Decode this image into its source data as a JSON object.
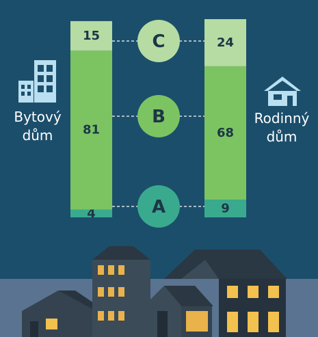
{
  "chart_data": {
    "type": "stacked-bar",
    "categories": [
      "Bytový dům",
      "Rodinný dům"
    ],
    "series": [
      {
        "name": "A",
        "color": "#3aaa8f",
        "values": [
          4,
          9
        ]
      },
      {
        "name": "B",
        "color": "#7cc462",
        "values": [
          81,
          68
        ]
      },
      {
        "name": "C",
        "color": "#b6dca3",
        "values": [
          15,
          24
        ]
      }
    ]
  }
}
